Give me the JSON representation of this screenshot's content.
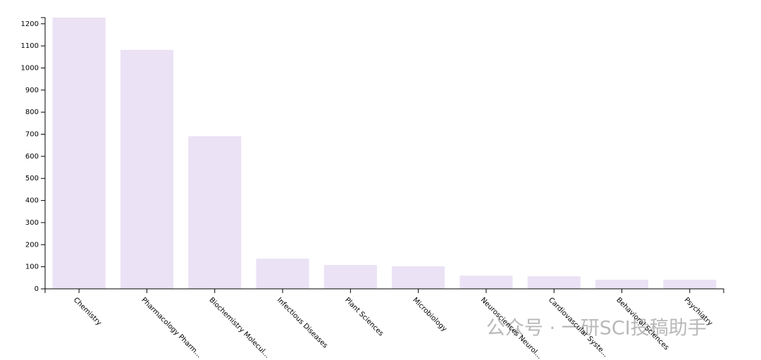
{
  "chart_data": {
    "type": "bar",
    "categories": [
      "Chemistry",
      "Pharmacology Pharm...",
      "Biochemistry Molecul...",
      "Infectious Diseases",
      "Plant Sciences",
      "Microbiology",
      "Neurosciences Neurol...",
      "Cardiovascular Syste...",
      "Behavioral Sciences",
      "Psychiatry"
    ],
    "values": [
      1228,
      1082,
      691,
      137,
      108,
      102,
      60,
      57,
      41,
      41
    ],
    "color": "#ebe2f5",
    "ylim": [
      0,
      1228
    ],
    "yticks": [
      0,
      100,
      200,
      300,
      400,
      500,
      600,
      700,
      800,
      900,
      1000,
      1100,
      1200
    ],
    "grid": false,
    "watermark": "公众号 · 一研SCI投稿助手"
  }
}
